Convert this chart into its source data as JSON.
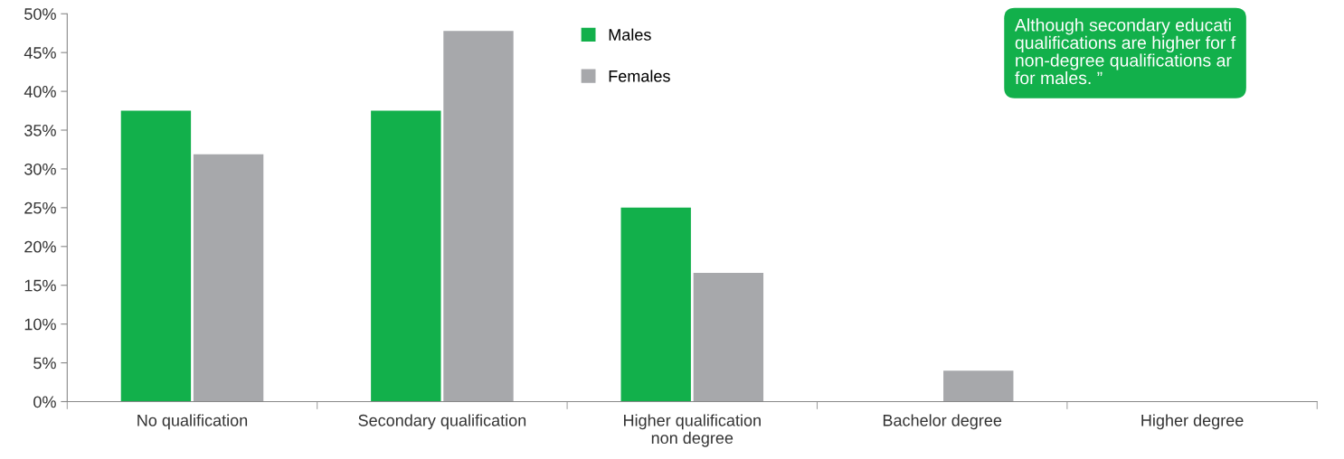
{
  "chart_data": {
    "type": "bar",
    "categories": [
      "No qualification",
      "Secondary qualification",
      "Higher qualification\nnon degree",
      "Bachelor degree",
      "Higher degree"
    ],
    "series": [
      {
        "name": "Males",
        "color": "#12b04b",
        "values": [
          37.5,
          37.5,
          25.0,
          0,
          0
        ]
      },
      {
        "name": "Females",
        "color": "#a7a8ab",
        "values": [
          31.9,
          47.8,
          16.6,
          4.0,
          0
        ]
      }
    ],
    "ylim": [
      0,
      50
    ],
    "yticks": [
      {
        "value": 0,
        "label": "0%"
      },
      {
        "value": 5,
        "label": "5%"
      },
      {
        "value": 10,
        "label": "10%"
      },
      {
        "value": 15,
        "label": "15%"
      },
      {
        "value": 20,
        "label": "20%"
      },
      {
        "value": 25,
        "label": "25%"
      },
      {
        "value": 30,
        "label": "30%"
      },
      {
        "value": 35,
        "label": "35%"
      },
      {
        "value": 40,
        "label": "40%"
      },
      {
        "value": 45,
        "label": "45%"
      },
      {
        "value": 50,
        "label": "50%"
      }
    ],
    "grid": false,
    "legend": "top",
    "annotations": [
      "Although secondary educati\nqualifications are higher for f\nnon-degree qualifications ar\nfor males. ”"
    ]
  }
}
